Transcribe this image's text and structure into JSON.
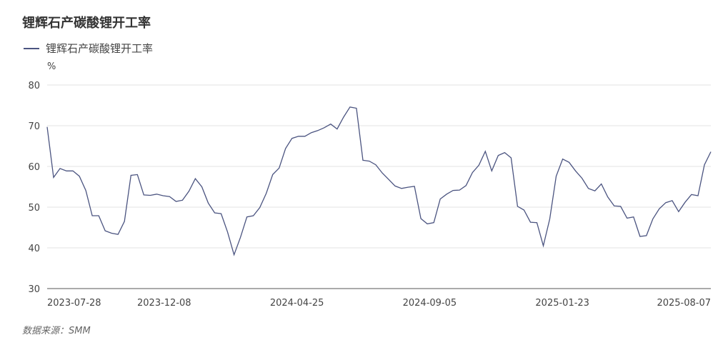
{
  "chart_data": {
    "type": "line",
    "title": "锂辉石产碳酸锂开工率",
    "unit": "%",
    "ylim": [
      30,
      80
    ],
    "yticks": [
      30,
      40,
      50,
      60,
      70,
      80
    ],
    "xtick_labels": [
      "2023-07-28",
      "2023-12-08",
      "2024-04-25",
      "2024-09-05",
      "2025-01-23",
      "2025-08-07"
    ],
    "grid": "horizontal",
    "legend_position": "top-left",
    "series": [
      {
        "name": "锂辉石产碳酸锂开工率",
        "color": "#4b5480",
        "values": [
          69.7,
          57.3,
          59.5,
          58.9,
          58.9,
          57.6,
          54.1,
          47.9,
          47.9,
          44.2,
          43.6,
          43.3,
          46.5,
          57.8,
          58.0,
          53.0,
          52.9,
          53.2,
          52.8,
          52.6,
          51.4,
          51.7,
          53.9,
          57.0,
          55.0,
          51.0,
          48.6,
          48.4,
          43.9,
          38.3,
          42.6,
          47.6,
          47.9,
          49.9,
          53.4,
          58.0,
          59.6,
          64.4,
          66.9,
          67.4,
          67.4,
          68.3,
          68.8,
          69.5,
          70.4,
          69.2,
          72.1,
          74.6,
          74.3,
          61.5,
          61.3,
          60.4,
          58.4,
          56.8,
          55.2,
          54.6,
          54.9,
          55.1,
          47.2,
          45.9,
          46.2,
          52.0,
          53.2,
          54.1,
          54.2,
          55.3,
          58.5,
          60.3,
          63.7,
          58.9,
          62.7,
          63.4,
          62.1,
          50.2,
          49.3,
          46.3,
          46.2,
          40.5,
          47.1,
          57.6,
          61.8,
          61.0,
          58.9,
          57.1,
          54.6,
          54.0,
          55.7,
          52.5,
          50.3,
          50.2,
          47.3,
          47.6,
          42.8,
          43.0,
          47.1,
          49.6,
          51.1,
          51.6,
          48.9,
          51.2,
          53.1,
          52.8,
          60.4,
          63.6
        ]
      }
    ]
  },
  "source_text": "数据来源：SMM"
}
